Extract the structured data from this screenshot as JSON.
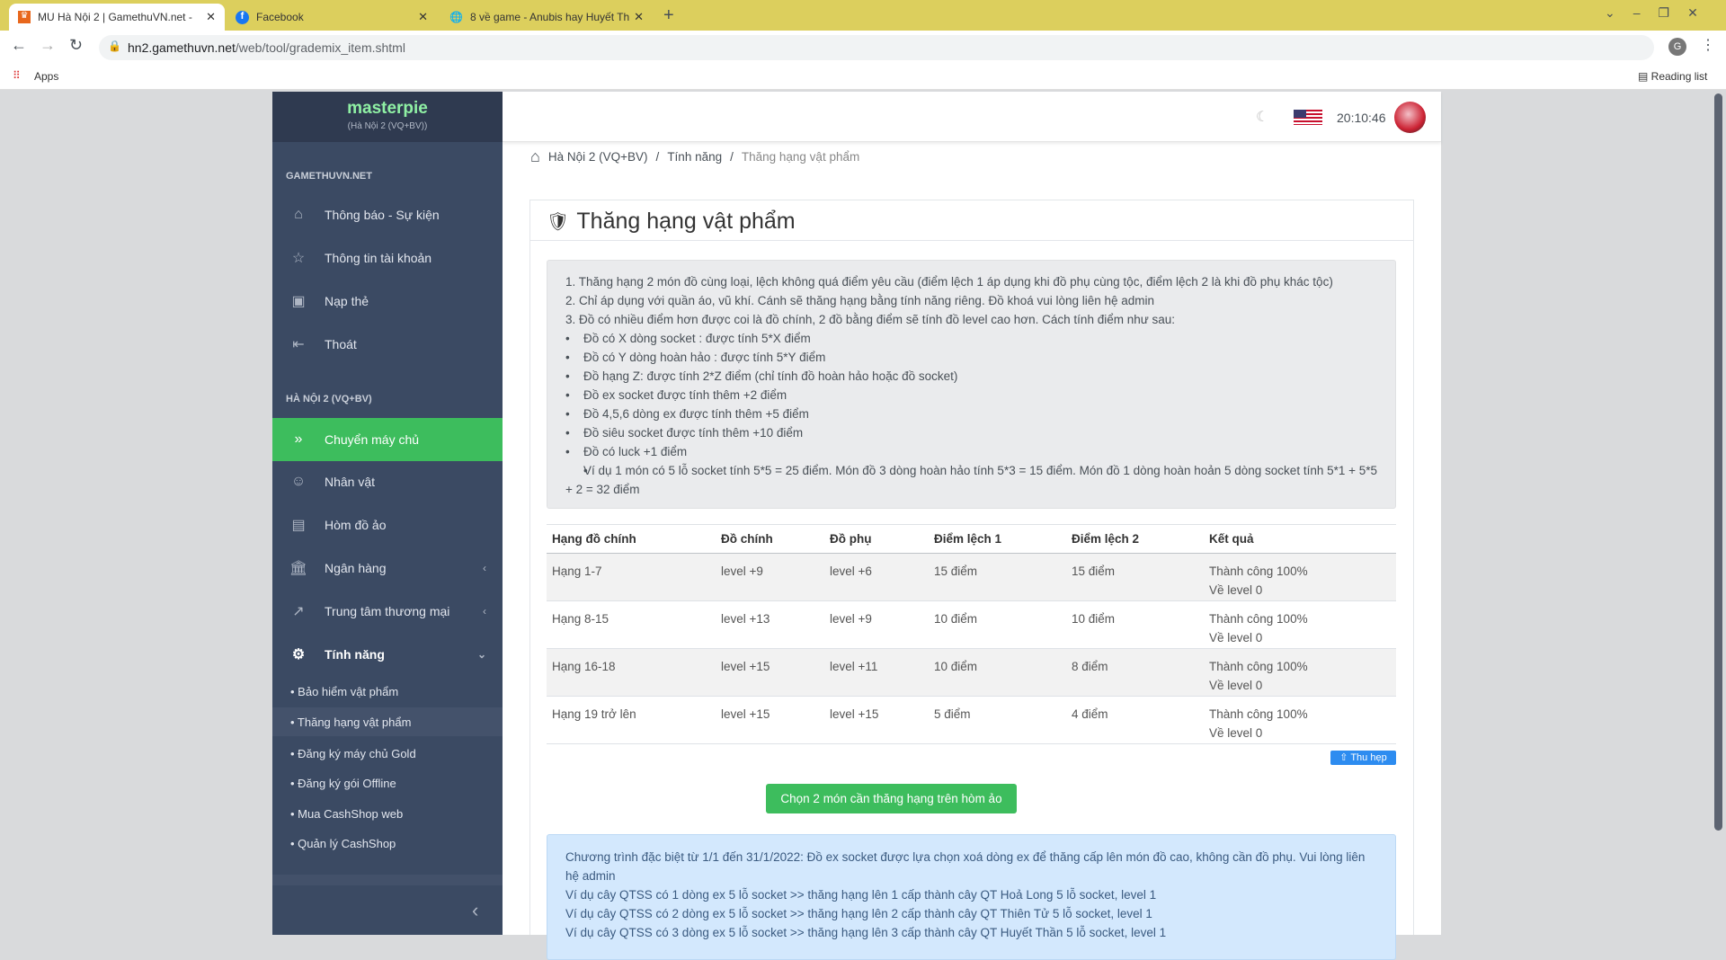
{
  "browser": {
    "tabs": [
      {
        "title": "MU Hà Nội 2 | GamethuVN.net -",
        "icon": "mu-icon"
      },
      {
        "title": "Facebook",
        "icon": "facebook-icon"
      },
      {
        "title": "8 về game - Anubis hay Huyết Th",
        "icon": "globe-icon"
      }
    ],
    "url_host": "hn2.gamethuvn.net",
    "url_path": "/web/tool/grademix_item.shtml",
    "bookmarks_apps": "Apps",
    "reading_list": "Reading list",
    "profile_initial": "G"
  },
  "sidebar": {
    "brand": "masterpie",
    "server": "(Hà Nội 2 (VQ+BV))",
    "section1": "GAMETHUVN.NET",
    "items1": [
      {
        "label": "Thông báo - Sự kiện",
        "icon": "home-icon"
      },
      {
        "label": "Thông tin tài khoản",
        "icon": "star-icon"
      },
      {
        "label": "Nạp thẻ",
        "icon": "card-icon"
      },
      {
        "label": "Thoát",
        "icon": "logout-icon"
      }
    ],
    "section2": "HÀ NỘI 2 (VQ+BV)",
    "items2": [
      {
        "label": "Chuyển máy chủ",
        "icon": "transfer-icon",
        "active": true
      },
      {
        "label": "Nhân vật",
        "icon": "smile-icon"
      },
      {
        "label": "Hòm đồ ảo",
        "icon": "chest-icon"
      },
      {
        "label": "Ngân hàng",
        "icon": "bank-icon"
      },
      {
        "label": "Trung tâm thương mại",
        "icon": "chart-icon"
      },
      {
        "label": "Tính năng",
        "icon": "gear-icon"
      }
    ],
    "sub": [
      "• Bảo hiểm vật phẩm",
      "• Thăng hạng vật phẩm",
      "• Đăng ký máy chủ Gold",
      "• Đăng ký gói Offline",
      "• Mua CashShop web",
      "• Quản lý CashShop"
    ]
  },
  "header": {
    "time": "20:10:46"
  },
  "breadcrumb": [
    "Hà Nội 2 (VQ+BV)",
    "Tính năng",
    "Thăng hạng vật phẩm"
  ],
  "card": {
    "title": "Thăng hạng vật phẩm",
    "rules": [
      "1. Thăng hạng 2 món đồ cùng loại, lệch không quá điểm yêu cầu (điểm lệch 1 áp dụng khi đồ phụ cùng tộc, điểm lệch 2 là khi đồ phụ khác tộc)",
      "2. Chỉ áp dụng với quần áo, vũ khí. Cánh sẽ thăng hạng bằng tính năng riêng. Đồ khoá vui lòng liên hệ admin",
      "3. Đồ có nhiều điểm hơn được coi là đồ chính, 2 đồ bằng điểm sẽ tính đồ level cao hơn. Cách tính điểm như sau:"
    ],
    "bullets": [
      "Đồ có X dòng socket : được tính 5*X điểm",
      "Đồ có Y dòng hoàn hảo : được tính 5*Y điểm",
      "Đồ hạng Z: được tính 2*Z điểm (chỉ tính đồ hoàn hảo hoặc đồ socket)",
      "Đồ ex socket được tính thêm +2 điểm",
      "Đồ 4,5,6 dòng ex được tính thêm +5 điểm",
      "Đồ siêu socket được tính thêm +10 điểm",
      "Đồ có luck +1 điểm",
      "Ví dụ 1 món có 5 lỗ socket tính 5*5 = 25 điểm. Món đồ 3 dòng hoàn hảo tính 5*3 = 15 điểm. Món đồ 1 dòng hoàn hoản 5 dòng socket tính 5*1 + 5*5 + 2 = 32 điểm"
    ],
    "table": {
      "headers": [
        "Hạng đồ chính",
        "Đồ chính",
        "Đồ phụ",
        "Điểm lệch 1",
        "Điểm lệch 2",
        "Kết quả"
      ],
      "rows": [
        [
          "Hạng 1-7",
          "level +9",
          "level +6",
          "15 điểm",
          "15 điểm",
          "Thành công 100%",
          "Về level 0"
        ],
        [
          "Hạng 8-15",
          "level +13",
          "level +9",
          "10 điểm",
          "10 điểm",
          "Thành công 100%",
          "Về level 0"
        ],
        [
          "Hạng 16-18",
          "level +15",
          "level +11",
          "10 điểm",
          "8 điểm",
          "Thành công 100%",
          "Về level 0"
        ],
        [
          "Hạng 19 trở lên",
          "level +15",
          "level +15",
          "5 điểm",
          "4 điểm",
          "Thành công 100%",
          "Về level 0"
        ]
      ]
    },
    "collapse_label": "⇧ Thu hẹp",
    "select_button": "Chọn 2 món cần thăng hạng trên hòm ảo",
    "notice": [
      "Chương trình đặc biệt từ 1/1 đến 31/1/2022: Đồ ex socket được lựa chọn xoá dòng ex để thăng cấp lên món đồ cao, không cần đồ phụ. Vui lòng liên hệ admin",
      "Ví dụ cây QTSS có 1 dòng ex 5 lỗ socket >> thăng hạng lên 1 cấp thành cây QT Hoả Long 5 lỗ socket, level 1",
      "Ví dụ cây QTSS có 2 dòng ex 5 lỗ socket >> thăng hạng lên 2 cấp thành cây QT Thiên Tử 5 lỗ socket, level 1",
      "Ví dụ cây QTSS có 3 dòng ex 5 lỗ socket >> thăng hạng lên 3 cấp thành cây QT Huyết Thần 5 lỗ socket, level 1"
    ]
  },
  "colors": {
    "accent_green": "#3dbd5d",
    "sidebar": "#3b4a63",
    "brand": "#8ff0a4",
    "tabbar": "#dccf5d"
  }
}
